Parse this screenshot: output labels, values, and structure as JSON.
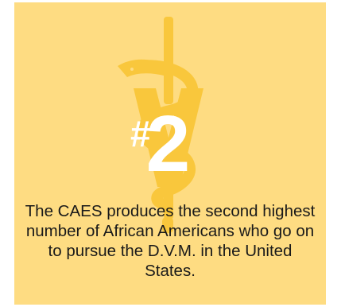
{
  "colors": {
    "background": "#fedc82",
    "emblem": "#f9c73c",
    "rank_text": "#ffffff",
    "caption_text": "#1a1a1a"
  },
  "emblem": {
    "icon": "veterinary-caduceus-icon"
  },
  "rank": {
    "hash": "#",
    "number": "2"
  },
  "caption": {
    "text": "The CAES produces the second highest number of African Americans who go on to pursue the D.V.M. in the United States."
  }
}
